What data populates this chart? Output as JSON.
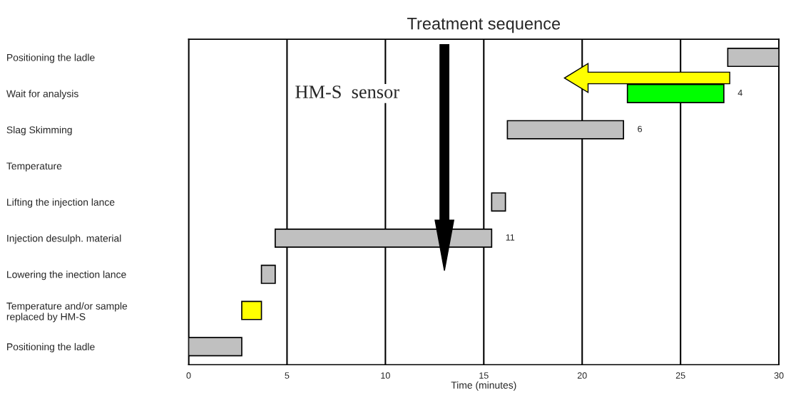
{
  "chart_data": {
    "type": "bar",
    "orientation": "horizontal",
    "title": "Treatment sequence",
    "xlabel": "Time (minutes)",
    "categories": [
      "Positioning the ladle",
      "Wait for analysis",
      "Slag Skimming",
      "Temperature",
      "Lifting the injection lance",
      "Injection desulph. material",
      "Lowering the inection lance",
      "Temperature and/or sample\nreplaced by HM-S",
      "Positioning the ladle"
    ],
    "base": [
      27.4,
      22.3,
      16.2,
      null,
      15.4,
      4.4,
      3.7,
      2.7,
      0
    ],
    "values": [
      2.6,
      4.9,
      5.9,
      null,
      0.7,
      11.0,
      0.7,
      1.0,
      2.7
    ],
    "colors": [
      "#c0c0c0",
      "#00ff00",
      "#c0c0c0",
      "#c0c0c0",
      "#c0c0c0",
      "#c0c0c0",
      "#c0c0c0",
      "#ffff00",
      "#c0c0c0"
    ],
    "value_labels": [
      null,
      null,
      "6",
      null,
      null,
      "11",
      null,
      null,
      null
    ],
    "xlim": [
      0,
      30
    ],
    "xticks": [
      0,
      5,
      10,
      15,
      20,
      25,
      30
    ],
    "grid": "x",
    "legend": false,
    "annotations": [
      "HM-S  sensor",
      {
        "text": "4",
        "x": 27.2,
        "y": "Wait for analysis"
      }
    ]
  }
}
